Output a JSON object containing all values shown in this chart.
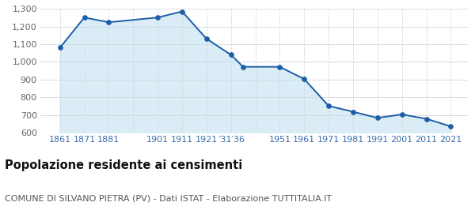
{
  "years": [
    1861,
    1871,
    1881,
    1901,
    1911,
    1921,
    1931,
    1936,
    1951,
    1961,
    1971,
    1981,
    1991,
    2001,
    2011,
    2021
  ],
  "population": [
    1080,
    1251,
    1224,
    1251,
    1285,
    1131,
    1040,
    972,
    972,
    903,
    751,
    718,
    683,
    703,
    678,
    635
  ],
  "x_tick_positions": [
    1861,
    1871,
    1881,
    1891,
    1901,
    1911,
    1921,
    1931,
    1941,
    1951,
    1961,
    1971,
    1981,
    1991,
    2001,
    2011,
    2021
  ],
  "x_tick_labels": [
    "1861",
    "1871",
    "1881",
    "",
    "1901",
    "1911",
    "1921",
    "’31′36",
    "",
    "1951",
    "1961",
    "1971",
    "1981",
    "1991",
    "2001",
    "2011",
    "2021"
  ],
  "ylim": [
    600,
    1300
  ],
  "yticks": [
    600,
    700,
    800,
    900,
    1000,
    1100,
    1200,
    1300
  ],
  "line_color": "#1c5ea8",
  "fill_color": "#daedf7",
  "marker_color": "#1c5ea8",
  "background_color": "#ffffff",
  "grid_color": "#d0d8e0",
  "title": "Popolazione residente ai censimenti",
  "subtitle": "COMUNE DI SILVANO PIETRA (PV) - Dati ISTAT - Elaborazione TUTTITALIA.IT",
  "title_fontsize": 10.5,
  "subtitle_fontsize": 8.0,
  "xlim_left": 1853,
  "xlim_right": 2028
}
